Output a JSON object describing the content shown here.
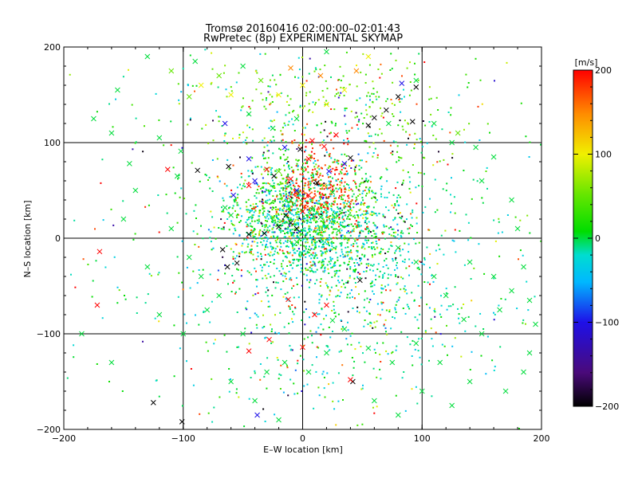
{
  "chart_data": {
    "type": "scatter",
    "title": "Tromsø 20160416 02:00:00–02:01:43",
    "subtitle": "RwPretec (8p) EXPERIMENTAL SKYMAP",
    "xlabel": "E–W location [km]",
    "ylabel": "N–S location [km]",
    "xlim": [
      -200,
      200
    ],
    "ylim": [
      -200,
      200
    ],
    "xticks": [
      -200,
      -100,
      0,
      100,
      200
    ],
    "yticks": [
      -200,
      -100,
      0,
      100,
      200
    ],
    "grid": true,
    "colorbar": {
      "label": "[m/s]",
      "min": -200,
      "max": 200,
      "ticks": [
        -200,
        -100,
        0,
        100,
        200
      ],
      "colormap": "rainbow: black-purple-blue-cyan-green-yellow-red"
    },
    "markers": {
      "small": "point",
      "large": "x"
    },
    "colors": {
      "c_m200": "#000000",
      "c_m150": "#4a0a7a",
      "c_m100": "#1e10e8",
      "c_m50": "#00b8ff",
      "c_m25": "#00ddd0",
      "c_0": "#00dd00",
      "c_50": "#66e600",
      "c_100": "#f0f000",
      "c_150": "#ff8c00",
      "c_200": "#ff0000"
    },
    "series": [
      {
        "marker": "x",
        "points": [
          [
            -170,
            -14,
            200
          ],
          [
            -172,
            -70,
            200
          ],
          [
            -113,
            72,
            200
          ],
          [
            -102,
            91,
            0
          ],
          [
            -88,
            71,
            -200
          ],
          [
            -62,
            75,
            -200
          ],
          [
            -67,
            -12,
            -200
          ],
          [
            -63,
            -30,
            -200
          ],
          [
            -55,
            -26,
            -200
          ],
          [
            -125,
            -172,
            -200
          ],
          [
            -101,
            -192,
            -200
          ],
          [
            -45,
            4,
            -200
          ],
          [
            -32,
            5,
            -200
          ],
          [
            -38,
            -185,
            -100
          ],
          [
            -60,
            24,
            0
          ],
          [
            -58,
            45,
            -100
          ],
          [
            -45,
            55,
            200
          ],
          [
            -40,
            60,
            -100
          ],
          [
            -30,
            72,
            200
          ],
          [
            -24,
            65,
            -200
          ],
          [
            -20,
            70,
            50
          ],
          [
            -10,
            62,
            200
          ],
          [
            -5,
            50,
            -100
          ],
          [
            0,
            28,
            200
          ],
          [
            5,
            45,
            200
          ],
          [
            12,
            58,
            -200
          ],
          [
            18,
            55,
            150
          ],
          [
            25,
            48,
            0
          ],
          [
            -20,
            12,
            -200
          ],
          [
            -14,
            24,
            -200
          ],
          [
            -10,
            16,
            -200
          ],
          [
            -5,
            10,
            -200
          ],
          [
            -2,
            93,
            -200
          ],
          [
            5,
            83,
            200
          ],
          [
            8,
            102,
            200
          ],
          [
            18,
            96,
            200
          ],
          [
            28,
            108,
            200
          ],
          [
            40,
            84,
            -200
          ],
          [
            55,
            118,
            -200
          ],
          [
            60,
            126,
            -200
          ],
          [
            70,
            134,
            -200
          ],
          [
            80,
            148,
            -200
          ],
          [
            92,
            122,
            -200
          ],
          [
            95,
            158,
            -200
          ],
          [
            72,
            120,
            0
          ],
          [
            83,
            162,
            -100
          ],
          [
            95,
            165,
            0
          ],
          [
            -28,
            -106,
            200
          ],
          [
            -45,
            -118,
            200
          ],
          [
            -12,
            -64,
            200
          ],
          [
            0,
            -114,
            200
          ],
          [
            42,
            -150,
            -200
          ],
          [
            48,
            -44,
            -200
          ],
          [
            20,
            -70,
            200
          ],
          [
            10,
            -80,
            200
          ],
          [
            25,
            -86,
            0
          ],
          [
            40,
            -148,
            200
          ],
          [
            -65,
            120,
            -100
          ],
          [
            -45,
            83,
            -100
          ],
          [
            -15,
            95,
            -100
          ],
          [
            22,
            70,
            -100
          ],
          [
            35,
            78,
            -100
          ],
          [
            -10,
            40,
            0
          ],
          [
            8,
            30,
            0
          ],
          [
            15,
            22,
            0
          ],
          [
            20,
            12,
            0
          ],
          [
            30,
            8,
            0
          ],
          [
            -5,
            -4,
            0
          ],
          [
            -65,
            32,
            0
          ],
          [
            -105,
            65,
            0
          ],
          [
            -120,
            105,
            0
          ],
          [
            -145,
            78,
            0
          ],
          [
            -160,
            110,
            0
          ],
          [
            -110,
            175,
            50
          ],
          [
            -85,
            160,
            100
          ],
          [
            -95,
            148,
            50
          ],
          [
            -70,
            170,
            50
          ],
          [
            -60,
            150,
            100
          ],
          [
            -50,
            180,
            0
          ],
          [
            -35,
            165,
            50
          ],
          [
            -20,
            150,
            100
          ],
          [
            -10,
            178,
            150
          ],
          [
            0,
            160,
            100
          ],
          [
            15,
            170,
            150
          ],
          [
            20,
            140,
            100
          ],
          [
            35,
            155,
            100
          ],
          [
            45,
            175,
            150
          ],
          [
            55,
            190,
            100
          ],
          [
            110,
            120,
            0
          ],
          [
            125,
            100,
            0
          ],
          [
            130,
            110,
            50
          ],
          [
            145,
            95,
            0
          ],
          [
            160,
            85,
            0
          ],
          [
            150,
            60,
            0
          ],
          [
            175,
            40,
            0
          ],
          [
            185,
            -30,
            0
          ],
          [
            175,
            -55,
            0
          ],
          [
            190,
            -65,
            0
          ],
          [
            195,
            -90,
            0
          ],
          [
            165,
            -75,
            0
          ],
          [
            150,
            -100,
            0
          ],
          [
            135,
            -85,
            0
          ],
          [
            120,
            -60,
            0
          ],
          [
            110,
            -40,
            0
          ],
          [
            95,
            -25,
            0
          ],
          [
            80,
            -10,
            0
          ],
          [
            140,
            -25,
            0
          ],
          [
            160,
            -40,
            0
          ],
          [
            180,
            10,
            0
          ],
          [
            190,
            -120,
            0
          ],
          [
            185,
            -140,
            0
          ],
          [
            170,
            -160,
            0
          ],
          [
            140,
            -150,
            0
          ],
          [
            115,
            -130,
            0
          ],
          [
            95,
            -110,
            0
          ],
          [
            75,
            -130,
            0
          ],
          [
            55,
            -115,
            0
          ],
          [
            35,
            -95,
            0
          ],
          [
            20,
            -120,
            0
          ],
          [
            5,
            -140,
            0
          ],
          [
            -15,
            -130,
            0
          ],
          [
            -30,
            -140,
            0
          ],
          [
            -50,
            -100,
            0
          ],
          [
            -70,
            -60,
            0
          ],
          [
            -85,
            -40,
            0
          ],
          [
            -95,
            -20,
            0
          ],
          [
            -110,
            10,
            0
          ],
          [
            -130,
            -30,
            0
          ],
          [
            -150,
            20,
            0
          ],
          [
            -140,
            50,
            0
          ],
          [
            -80,
            -75,
            0
          ],
          [
            -60,
            -150,
            0
          ],
          [
            -40,
            -170,
            0
          ],
          [
            -20,
            -190,
            0
          ],
          [
            60,
            -170,
            0
          ],
          [
            80,
            -185,
            0
          ],
          [
            100,
            -160,
            0
          ],
          [
            125,
            -175,
            0
          ],
          [
            -160,
            -130,
            0
          ],
          [
            -185,
            -100,
            0
          ],
          [
            -100,
            -100,
            0
          ],
          [
            -120,
            -80,
            0
          ],
          [
            -90,
            185,
            0
          ],
          [
            -130,
            190,
            0
          ],
          [
            20,
            195,
            0
          ],
          [
            -155,
            155,
            0
          ],
          [
            -175,
            125,
            0
          ],
          [
            -5,
            125,
            0
          ],
          [
            -25,
            115,
            0
          ],
          [
            -45,
            130,
            0
          ]
        ]
      },
      {
        "marker": "point",
        "clusters": [
          {
            "cx": 10,
            "cy": 15,
            "sx": 35,
            "sy": 32,
            "n": 1500,
            "vbias": -10
          },
          {
            "cx": 0,
            "cy": 45,
            "sx": 30,
            "sy": 25,
            "n": 450,
            "vbias": 30
          },
          {
            "cx": 20,
            "cy": 130,
            "sx": 60,
            "sy": 35,
            "n": 350,
            "vbias": 40
          },
          {
            "cx": 40,
            "cy": -60,
            "sx": 60,
            "sy": 55,
            "n": 500,
            "vbias": -20
          },
          {
            "cx": 0,
            "cy": 0,
            "sx": 110,
            "sy": 110,
            "n": 600,
            "vbias": 0
          }
        ],
        "seed": 20160416
      }
    ]
  }
}
